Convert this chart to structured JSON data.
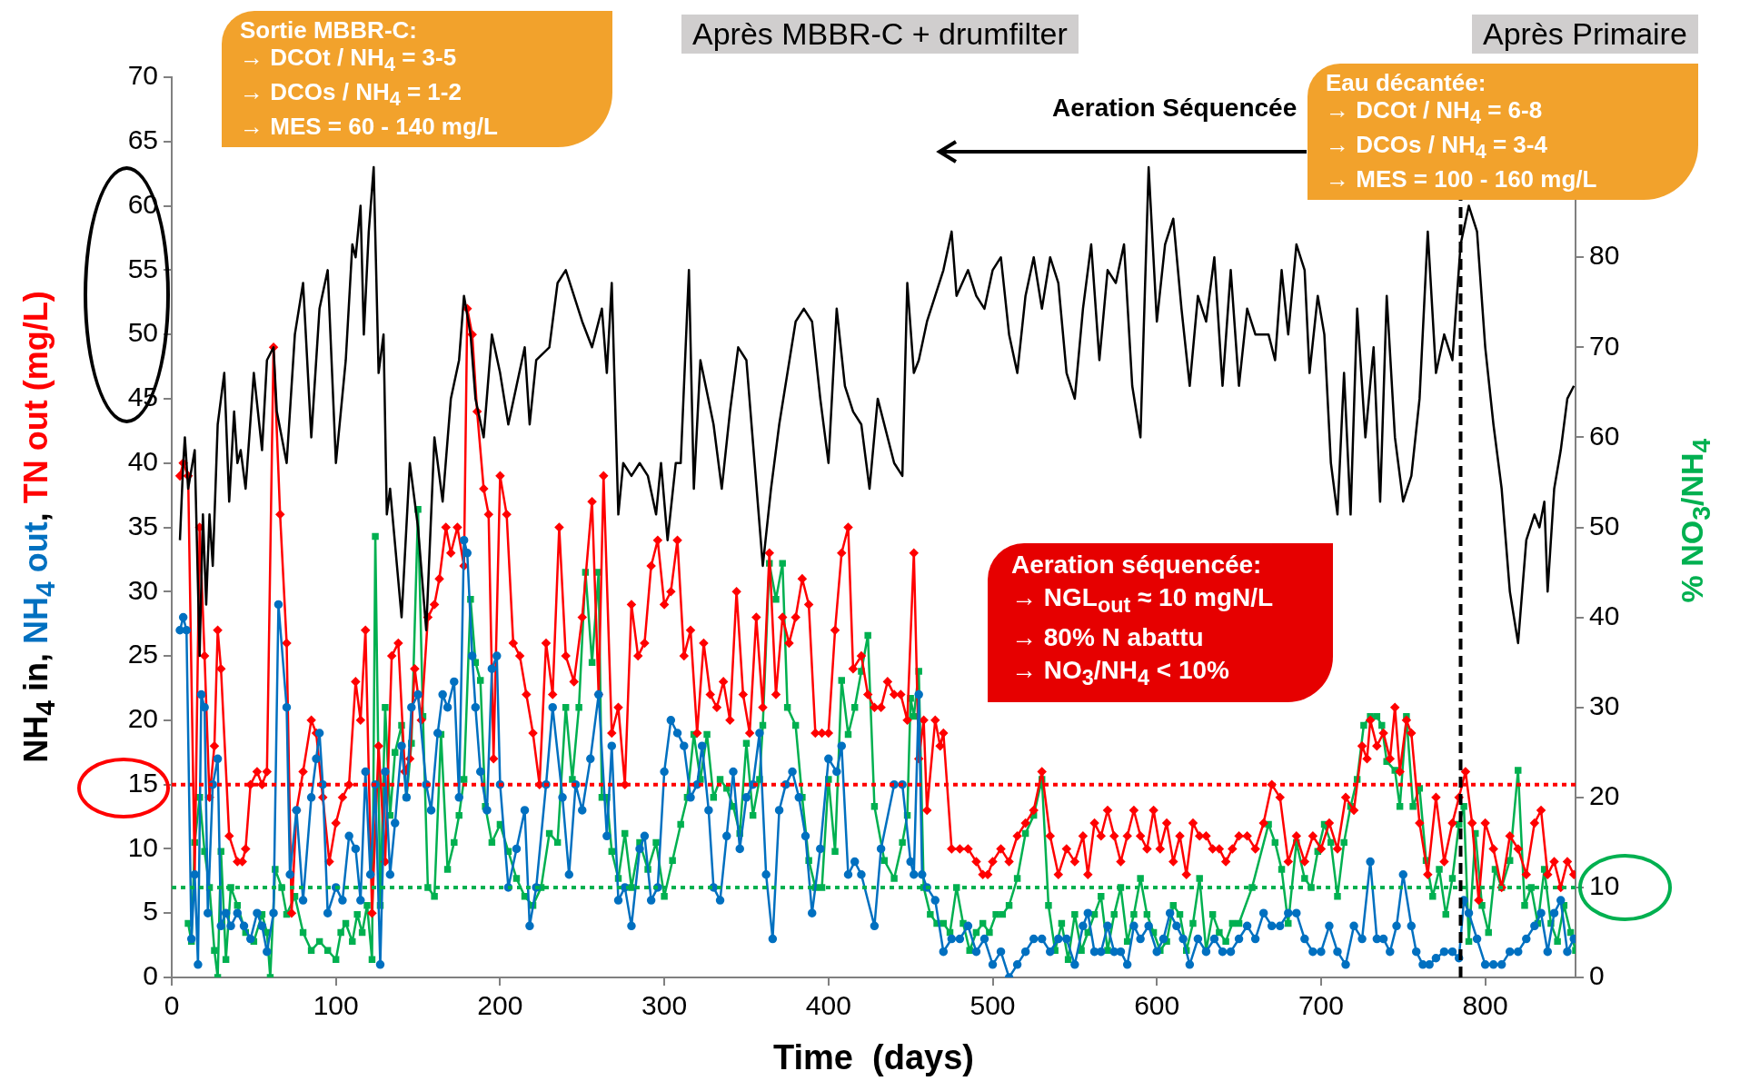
{
  "chart_data": {
    "type": "line",
    "xlabel": "Time  (days)",
    "ylabel": "NH$_{4}$ in, NH$_{4}$ out, TN out (mg/L)",
    "y2label": "% NO$_{3}$/NH$_{4}$",
    "xlim": [
      0,
      855
    ],
    "xticks": [
      0,
      100,
      200,
      300,
      400,
      500,
      600,
      700,
      800
    ],
    "ylim": [
      0,
      70
    ],
    "yticks": [
      0,
      5,
      10,
      15,
      20,
      25,
      30,
      35,
      40,
      45,
      50,
      55,
      60,
      65,
      70
    ],
    "y2lim": [
      0,
      100
    ],
    "y2ticks": [
      0,
      10,
      20,
      30,
      40,
      50,
      60,
      70,
      80
    ],
    "grid": false,
    "legend": false,
    "series": [
      {
        "color": "#000000",
        "marker": "none",
        "x": [
          5,
          7,
          8,
          10,
          14,
          17,
          19,
          21,
          23,
          25,
          28,
          32,
          35,
          38,
          40,
          42,
          45,
          50,
          55,
          58,
          62,
          64,
          70,
          75,
          80,
          85,
          90,
          95,
          100,
          103,
          106,
          110,
          112,
          115,
          117,
          120,
          123,
          126,
          129,
          131,
          133,
          140,
          145,
          150,
          155,
          160,
          165,
          170,
          175,
          178,
          182,
          185,
          190,
          195,
          200,
          205,
          210,
          215,
          218,
          222,
          230,
          235,
          240,
          250,
          256,
          262,
          265,
          268,
          272,
          275,
          280,
          285,
          290,
          295,
          298,
          302,
          307,
          310,
          315,
          318,
          322,
          330,
          335,
          340,
          345,
          350,
          355,
          360,
          365,
          370,
          380,
          385,
          390,
          395,
          400,
          405,
          410,
          415,
          420,
          425,
          430,
          440,
          445,
          448,
          452,
          455,
          460,
          465,
          470,
          475,
          478,
          485,
          490,
          495,
          500,
          505,
          510,
          515,
          520,
          525,
          530,
          535,
          540,
          545,
          550,
          555,
          560,
          565,
          570,
          575,
          580,
          585,
          590,
          595,
          600,
          605,
          610,
          615,
          620,
          625,
          630,
          635,
          640,
          645,
          650,
          655,
          660,
          668,
          672,
          676,
          680,
          685,
          690,
          693,
          698,
          702,
          706,
          710,
          714,
          718,
          722,
          727,
          732,
          736,
          740,
          745,
          750,
          755,
          760,
          765,
          770,
          775,
          780,
          785,
          790,
          795,
          800,
          805,
          810,
          815,
          820,
          825,
          830,
          833,
          836,
          838,
          842,
          846,
          850,
          854
        ],
        "values": [
          34,
          40,
          42,
          38,
          41,
          25,
          36,
          29,
          36,
          32,
          43,
          47,
          37,
          44,
          40,
          41,
          38,
          47,
          41,
          48,
          49,
          44,
          40,
          50,
          54,
          42,
          52,
          55,
          40,
          44,
          48,
          57,
          56,
          60,
          50,
          58,
          63,
          47,
          50,
          36,
          38,
          28,
          40,
          35,
          27,
          42,
          37,
          45,
          48,
          53,
          50,
          45,
          42,
          50,
          47,
          43,
          46,
          49,
          43,
          48,
          49,
          54,
          55,
          51,
          49,
          52,
          47,
          54,
          36,
          40,
          39,
          40,
          39,
          36,
          40,
          34,
          40,
          40,
          55,
          38,
          48,
          43,
          38,
          44,
          49,
          48,
          40,
          32,
          38,
          43,
          51,
          52,
          51,
          45,
          40,
          52,
          46,
          44,
          43,
          38,
          45,
          40,
          39,
          54,
          47,
          48,
          51,
          53,
          55,
          58,
          53,
          55,
          53,
          52,
          55,
          56,
          50,
          47,
          53,
          56,
          52,
          56,
          54,
          47,
          45,
          52,
          57,
          48,
          55,
          54,
          57,
          46,
          42,
          63,
          51,
          57,
          59,
          52,
          46,
          53,
          51,
          56,
          46,
          55,
          46,
          52,
          50,
          50,
          48,
          55,
          50,
          57,
          55,
          47,
          53,
          50,
          40,
          36,
          47,
          36,
          52,
          42,
          49,
          37,
          53,
          42,
          37,
          39,
          45,
          58,
          47,
          50,
          48,
          57,
          60,
          58,
          49,
          43,
          38,
          30,
          26,
          34,
          36,
          35,
          37,
          30,
          38,
          41,
          45,
          46
        ]
      },
      {
        "color": "#0070c0",
        "marker": "circle",
        "x": [
          5,
          7,
          9,
          12,
          14,
          16,
          18,
          20,
          22,
          25,
          28,
          30,
          33,
          36,
          40,
          44,
          48,
          52,
          55,
          58,
          62,
          65,
          70,
          72,
          76,
          80,
          85,
          88,
          90,
          92,
          95,
          100,
          104,
          108,
          112,
          115,
          118,
          121,
          124,
          127,
          130,
          133,
          136,
          140,
          143,
          146,
          150,
          155,
          158,
          162,
          165,
          168,
          172,
          175,
          178,
          180,
          183,
          185,
          188,
          192,
          195,
          198,
          200,
          205,
          210,
          215,
          218,
          222,
          228,
          232,
          238,
          242,
          246,
          250,
          255,
          260,
          265,
          268,
          272,
          276,
          280,
          285,
          288,
          292,
          296,
          300,
          304,
          308,
          312,
          316,
          320,
          323,
          327,
          330,
          334,
          338,
          342,
          346,
          350,
          354,
          358,
          362,
          366,
          370,
          374,
          378,
          382,
          386,
          390,
          395,
          400,
          405,
          408,
          412,
          416,
          420,
          428,
          432,
          440,
          445,
          450,
          452,
          455,
          457,
          460,
          465,
          470,
          475,
          480,
          485,
          490,
          495,
          500,
          505,
          510,
          515,
          520,
          525,
          530,
          535,
          540,
          545,
          550,
          555,
          558,
          562,
          566,
          570,
          574,
          578,
          582,
          586,
          590,
          595,
          600,
          604,
          608,
          612,
          616,
          620,
          625,
          630,
          635,
          640,
          645,
          650,
          655,
          660,
          665,
          670,
          675,
          680,
          685,
          690,
          695,
          700,
          705,
          710,
          715,
          720,
          725,
          730,
          734,
          738,
          742,
          746,
          750,
          755,
          758,
          762,
          766,
          770,
          775,
          780,
          784,
          787,
          790,
          795,
          800,
          805,
          810,
          815,
          820,
          825,
          830,
          834,
          838,
          842,
          846,
          850,
          854
        ],
        "values": [
          27,
          28,
          27,
          3,
          8,
          1,
          22,
          21,
          5,
          15,
          17,
          4,
          5,
          4,
          5,
          4,
          3,
          5,
          4,
          2,
          5,
          29,
          21,
          8,
          13,
          6,
          14,
          17,
          19,
          15,
          5,
          7,
          6,
          11,
          10,
          6,
          16,
          8,
          15,
          1,
          16,
          8,
          12,
          18,
          14,
          21,
          22,
          15,
          13,
          19,
          22,
          21,
          23,
          14,
          34,
          33,
          25,
          21,
          16,
          13,
          24,
          25,
          15,
          7,
          10,
          13,
          4,
          7,
          15,
          21,
          14,
          8,
          15,
          13,
          17,
          22,
          11,
          18,
          6,
          7,
          4,
          10,
          11,
          6,
          7,
          16,
          20,
          19,
          18,
          14,
          15,
          18,
          13,
          7,
          6,
          11,
          16,
          10,
          14,
          15,
          19,
          8,
          3,
          13,
          15,
          16,
          14,
          11,
          5,
          10,
          17,
          16,
          18,
          8,
          9,
          8,
          4,
          10,
          15,
          15,
          9,
          8,
          22,
          8,
          7,
          6,
          2,
          3,
          3,
          4,
          2,
          3,
          1,
          2,
          0,
          1,
          2,
          3,
          3,
          2,
          3,
          3,
          1,
          4,
          5,
          2,
          2,
          4,
          2,
          2,
          1,
          4,
          3,
          4,
          2,
          3,
          5,
          4,
          3,
          1,
          3,
          2,
          3,
          2,
          2,
          3,
          4,
          3,
          5,
          4,
          4,
          5,
          5,
          3,
          2,
          2,
          4,
          2,
          1,
          4,
          3,
          9,
          3,
          3,
          2,
          4,
          8,
          4,
          2,
          1,
          1,
          1.5,
          2,
          2,
          1.5,
          6,
          5,
          3,
          1,
          1,
          1,
          2,
          2,
          3,
          4,
          5,
          2,
          5,
          6,
          2,
          3
        ]
      },
      {
        "color": "#ff0000",
        "marker": "diamond",
        "x": [
          5,
          7,
          10,
          14,
          17,
          20,
          23,
          26,
          28,
          30,
          35,
          40,
          43,
          45,
          48,
          52,
          55,
          58,
          62,
          66,
          70,
          73,
          76,
          80,
          85,
          88,
          92,
          96,
          100,
          104,
          108,
          112,
          115,
          118,
          122,
          126,
          130,
          134,
          138,
          142,
          145,
          148,
          152,
          156,
          160,
          163,
          167,
          170,
          174,
          178,
          180,
          183,
          186,
          190,
          193,
          196,
          200,
          204,
          208,
          212,
          216,
          220,
          224,
          228,
          232,
          236,
          240,
          245,
          250,
          256,
          260,
          263,
          268,
          272,
          276,
          280,
          284,
          288,
          292,
          296,
          300,
          304,
          308,
          312,
          316,
          320,
          324,
          328,
          332,
          336,
          340,
          344,
          348,
          352,
          356,
          360,
          364,
          368,
          372,
          376,
          380,
          384,
          388,
          392,
          396,
          400,
          404,
          408,
          412,
          415,
          420,
          424,
          428,
          432,
          436,
          440,
          444,
          448,
          452,
          455,
          458,
          460,
          465,
          468,
          470,
          475,
          480,
          485,
          490,
          494,
          497,
          500,
          505,
          510,
          515,
          520,
          525,
          530,
          535,
          540,
          545,
          550,
          555,
          558,
          562,
          566,
          570,
          574,
          578,
          582,
          586,
          590,
          594,
          598,
          602,
          606,
          610,
          614,
          618,
          622,
          626,
          630,
          634,
          638,
          642,
          646,
          650,
          655,
          660,
          665,
          670,
          675,
          680,
          685,
          690,
          695,
          700,
          705,
          710,
          715,
          720,
          725,
          728,
          730,
          734,
          738,
          742,
          745,
          748,
          752,
          755,
          760,
          765,
          770,
          775,
          780,
          784,
          788,
          792,
          796,
          800,
          805,
          810,
          815,
          820,
          825,
          830,
          834,
          838,
          842,
          846,
          850,
          854
        ],
        "values": [
          39,
          40,
          39,
          8,
          35,
          25,
          14,
          18,
          27,
          24,
          11,
          9,
          9,
          10,
          15,
          16,
          15,
          16,
          49,
          36,
          26,
          5,
          13,
          16,
          20,
          19,
          14,
          9,
          12,
          14,
          15,
          23,
          20,
          27,
          5,
          18,
          9,
          25,
          26,
          16,
          17,
          24,
          20,
          28,
          29,
          31,
          35,
          33,
          35,
          32,
          52,
          50,
          44,
          38,
          36,
          17,
          39,
          36,
          26,
          25,
          22,
          19,
          15,
          26,
          22,
          35,
          25,
          23,
          28,
          37,
          22,
          39,
          19,
          21,
          15,
          29,
          25,
          26,
          32,
          34,
          29,
          30,
          34,
          25,
          27,
          19,
          26,
          22,
          21,
          23,
          20,
          30,
          22,
          19,
          28,
          21,
          33,
          22,
          28,
          26,
          28,
          31,
          29,
          19,
          19,
          19,
          27,
          33,
          35,
          24,
          25,
          22,
          21,
          21,
          23,
          22,
          22,
          20,
          33,
          17,
          20,
          13,
          20,
          18,
          19,
          10,
          10,
          10,
          9,
          8,
          8,
          9,
          10,
          9,
          11,
          12,
          13,
          16,
          11,
          8,
          10,
          9,
          11,
          8,
          12,
          11,
          13,
          11,
          9,
          11,
          13,
          11,
          10,
          13,
          10,
          12,
          9,
          11,
          8,
          12,
          11,
          11,
          10,
          10,
          9,
          10,
          11,
          11,
          10,
          12,
          15,
          14,
          9,
          11,
          9,
          11,
          10,
          12,
          10,
          14,
          13,
          18,
          17,
          20,
          18,
          19,
          17,
          21,
          16,
          20,
          19,
          12,
          8,
          14,
          9,
          12,
          14,
          16,
          12,
          6,
          12,
          10,
          7,
          11,
          10,
          8,
          12,
          13,
          8,
          9,
          7,
          9,
          8
        ]
      },
      {
        "color": "#00b050",
        "marker": "square",
        "axis": "y2",
        "x": [
          10,
          12,
          14,
          17,
          20,
          23,
          26,
          28,
          30,
          33,
          36,
          40,
          45,
          50,
          55,
          58,
          60,
          63,
          67,
          70,
          75,
          80,
          85,
          90,
          95,
          100,
          103,
          106,
          110,
          113,
          116,
          119,
          122,
          124,
          127,
          130,
          133,
          136,
          140,
          143,
          146,
          150,
          153,
          156,
          160,
          164,
          168,
          172,
          175,
          178,
          182,
          185,
          188,
          191,
          195,
          200,
          205,
          210,
          215,
          220,
          225,
          230,
          235,
          240,
          244,
          248,
          252,
          256,
          260,
          262,
          265,
          268,
          272,
          276,
          280,
          285,
          290,
          295,
          300,
          305,
          310,
          314,
          318,
          322,
          326,
          330,
          334,
          338,
          342,
          346,
          350,
          354,
          358,
          360,
          364,
          368,
          372,
          375,
          380,
          384,
          388,
          392,
          396,
          400,
          404,
          408,
          412,
          416,
          420,
          424,
          428,
          434,
          440,
          445,
          448,
          450,
          452,
          455,
          458,
          462,
          466,
          470,
          474,
          478,
          482,
          486,
          490,
          494,
          498,
          502,
          506,
          510,
          515,
          520,
          525,
          530,
          534,
          538,
          542,
          546,
          550,
          554,
          558,
          562,
          566,
          570,
          574,
          578,
          582,
          586,
          590,
          594,
          598,
          602,
          606,
          610,
          614,
          618,
          622,
          626,
          630,
          634,
          638,
          642,
          646,
          650,
          658,
          668,
          672,
          676,
          680,
          685,
          690,
          694,
          698,
          702,
          706,
          710,
          714,
          718,
          722,
          726,
          730,
          734,
          737,
          740,
          745,
          748,
          752,
          756,
          760,
          764,
          768,
          772,
          776,
          780,
          784,
          787,
          790,
          794,
          798,
          802,
          806,
          810,
          815,
          820,
          824,
          828,
          832,
          836,
          840,
          844,
          848,
          852,
          855
        ],
        "values": [
          6,
          4,
          15,
          20,
          14,
          10,
          3,
          0,
          14,
          2,
          10,
          8,
          5,
          4,
          7,
          5,
          0,
          12,
          10,
          7,
          9,
          5,
          3,
          4,
          3,
          2,
          5,
          6,
          4,
          7,
          5,
          8,
          2,
          49,
          8,
          30,
          18,
          25,
          28,
          20,
          26,
          52,
          29,
          10,
          9,
          27,
          12,
          15,
          18,
          22,
          42,
          35,
          33,
          19,
          15,
          17,
          14,
          11,
          9,
          8,
          10,
          16,
          15,
          30,
          22,
          30,
          45,
          35,
          45,
          20,
          20,
          14,
          11,
          16,
          10,
          15,
          12,
          15,
          9,
          13,
          17,
          20,
          27,
          22,
          27,
          20,
          22,
          21,
          19,
          16,
          26,
          18,
          22,
          28,
          46,
          42,
          46,
          30,
          28,
          20,
          13,
          10,
          10,
          22,
          14,
          33,
          27,
          30,
          34,
          38,
          19,
          13,
          11,
          15,
          18,
          31,
          29,
          34,
          10,
          7,
          6,
          6,
          5,
          10,
          6,
          3,
          5,
          6,
          5,
          7,
          7,
          8,
          11,
          16,
          18,
          22,
          8,
          3,
          6,
          2,
          7,
          3,
          5,
          7,
          9,
          3,
          7,
          10,
          4,
          7,
          11,
          7,
          5,
          3,
          4,
          8,
          7,
          3,
          6,
          11,
          3,
          7,
          5,
          4,
          6,
          6,
          10,
          17,
          15,
          12,
          6,
          15,
          11,
          10,
          14,
          17,
          15,
          9,
          15,
          19,
          22,
          28,
          29,
          29,
          28,
          24,
          23,
          19,
          29,
          19,
          21,
          13,
          9,
          12,
          7,
          11,
          17,
          19,
          4,
          16,
          8,
          5,
          12,
          10,
          13,
          23,
          8,
          10,
          6,
          12,
          6,
          4,
          8,
          5,
          3
        ]
      }
    ],
    "ref_lines": [
      {
        "axis": "y",
        "value": 15,
        "color": "#ff0000",
        "line_style": "dotted"
      },
      {
        "axis": "y2",
        "value": 10,
        "color": "#00b050",
        "line_style": "dotted"
      },
      {
        "axis": "x",
        "value": 785,
        "color": "#000000",
        "line_style": "dashed"
      }
    ],
    "annotations": [
      "Sortie MBBR-C:\n→ DCOt / NH$_{4}$ = 3-5\n→ DCOs / NH$_{4}$ = 1-2\n→ MES = 60 - 140 mg/L",
      "Après MBBR-C + drumfilter",
      "Après Primaire",
      "Aeration Séquencée",
      "Eau décantée:\n→ DCOt / NH$_{4}$ = 6-8\n→ DCOs / NH$_{4}$ = 3-4\n→ MES = 100 - 160 mg/L",
      "Aeration séquencée:\n→ NGL$_{out}$ ≈ 10 mgN/L\n→ 80% N abattu\n→ NO$_{3}$/NH$_{4}$ < 10%"
    ]
  }
}
